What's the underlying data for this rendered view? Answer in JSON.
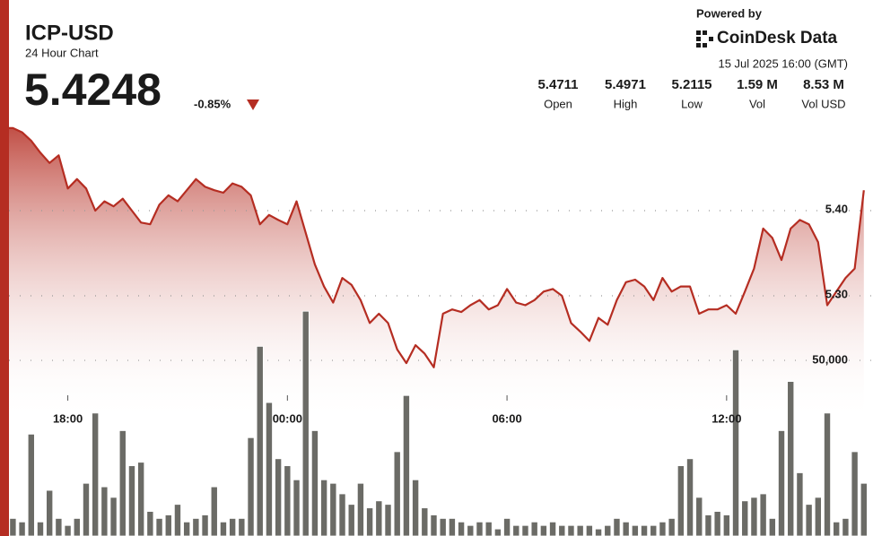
{
  "header": {
    "title": "ICP-USD",
    "subtitle": "24 Hour Chart",
    "price": "5.4248",
    "change": "-0.85%",
    "powered_by": "Powered by",
    "brand": "CoinDesk Data",
    "timestamp": "15 Jul 2025 16:00 (GMT)",
    "stats": [
      {
        "value": "5.4711",
        "label": "Open"
      },
      {
        "value": "5.4971",
        "label": "High"
      },
      {
        "value": "5.2115",
        "label": "Low"
      },
      {
        "value": "1.59 M",
        "label": "Vol"
      },
      {
        "value": "8.53 M",
        "label": "Vol USD"
      }
    ]
  },
  "chart_data": {
    "type": "line",
    "xlim": [
      0,
      96
    ],
    "xticks": [
      {
        "value": 8,
        "label": "18:00"
      },
      {
        "value": 32,
        "label": "00:00"
      },
      {
        "value": 56,
        "label": "06:00"
      },
      {
        "value": 80,
        "label": "12:00"
      }
    ],
    "ylim": [
      5.2,
      5.5
    ],
    "yticks": [
      {
        "value": 5.4,
        "label": "5.40"
      },
      {
        "value": 5.3,
        "label": "5.30"
      }
    ],
    "y2lim": [
      0,
      65000
    ],
    "y2ticks": [
      {
        "value": 50000,
        "label": "50,000"
      }
    ],
    "grid": true,
    "series": [
      {
        "name": "Price",
        "color": "#b52d22",
        "axis": "y",
        "values": [
          5.497,
          5.497,
          5.497,
          5.492,
          5.482,
          5.468,
          5.456,
          5.465,
          5.426,
          5.437,
          5.426,
          5.4,
          5.411,
          5.405,
          5.414,
          5.4,
          5.386,
          5.384,
          5.407,
          5.418,
          5.411,
          5.424,
          5.437,
          5.428,
          5.424,
          5.421,
          5.432,
          5.428,
          5.418,
          5.384,
          5.395,
          5.389,
          5.384,
          5.411,
          5.374,
          5.337,
          5.311,
          5.292,
          5.321,
          5.313,
          5.295,
          5.268,
          5.279,
          5.268,
          5.237,
          5.221,
          5.242,
          5.232,
          5.216,
          5.279,
          5.284,
          5.281,
          5.289,
          5.295,
          5.284,
          5.289,
          5.308,
          5.292,
          5.289,
          5.295,
          5.305,
          5.308,
          5.3,
          5.268,
          5.258,
          5.247,
          5.274,
          5.266,
          5.295,
          5.316,
          5.319,
          5.311,
          5.295,
          5.321,
          5.305,
          5.311,
          5.311,
          5.279,
          5.284,
          5.284,
          5.289,
          5.279,
          5.305,
          5.332,
          5.379,
          5.368,
          5.342,
          5.379,
          5.389,
          5.384,
          5.363,
          5.289,
          5.305,
          5.321,
          5.332,
          5.424
        ]
      },
      {
        "name": "Volume",
        "color": "#6b6b66",
        "type": "bar",
        "axis": "y2",
        "values": [
          10000,
          8000,
          5000,
          4000,
          29000,
          4000,
          13000,
          5000,
          3000,
          5000,
          15000,
          35000,
          14000,
          11000,
          30000,
          20000,
          21000,
          7000,
          5000,
          6000,
          9000,
          4000,
          5000,
          6000,
          14000,
          4000,
          5000,
          5000,
          28000,
          54000,
          38000,
          22000,
          20000,
          16000,
          64000,
          30000,
          16000,
          15000,
          12000,
          9000,
          15000,
          8000,
          10000,
          9000,
          24000,
          40000,
          16000,
          8000,
          6000,
          5000,
          5000,
          4000,
          3000,
          4000,
          4000,
          2000,
          5000,
          3000,
          3000,
          4000,
          3000,
          4000,
          3000,
          3000,
          3000,
          3000,
          2000,
          3000,
          5000,
          4000,
          3000,
          3000,
          3000,
          4000,
          5000,
          20000,
          22000,
          11000,
          6000,
          7000,
          6000,
          53000,
          10000,
          11000,
          12000,
          5000,
          30000,
          44000,
          18000,
          9000,
          11000,
          35000,
          4000,
          5000,
          24000,
          15000
        ]
      }
    ]
  }
}
